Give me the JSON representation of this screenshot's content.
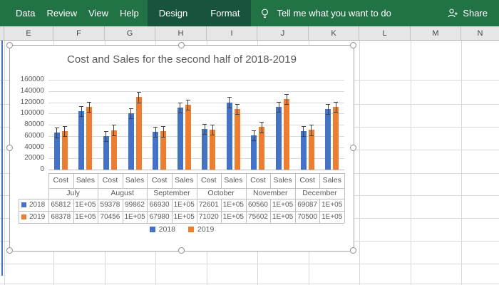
{
  "ribbon": {
    "tabs": [
      "Data",
      "Review",
      "View",
      "Help"
    ],
    "contextual_tabs": [
      "Design",
      "Format"
    ],
    "tell_me": "Tell me what you want to do",
    "share": "Share",
    "colors": {
      "bg": "#217346",
      "contextual_bg": "#17543b"
    }
  },
  "sheet": {
    "columns": [
      "E",
      "F",
      "G",
      "H",
      "I",
      "J",
      "K",
      "L",
      "M",
      "N"
    ]
  },
  "chart_data": {
    "type": "bar",
    "title": "Cost and Sales for the second half of 2018-2019",
    "months": [
      "July",
      "August",
      "September",
      "October",
      "November",
      "December"
    ],
    "metrics": [
      "Cost",
      "Sales"
    ],
    "y_ticks": [
      0,
      20000,
      40000,
      60000,
      80000,
      100000,
      120000,
      140000,
      160000
    ],
    "ylim": [
      0,
      160000
    ],
    "grid": true,
    "legend_position": "bottom",
    "error_bar_value": 9000,
    "series": [
      {
        "name": "2018",
        "color": "#4472c4",
        "values": [
          65812,
          104000,
          59378,
          99862,
          66930,
          111000,
          72601,
          120000,
          60560,
          112000,
          69087,
          108000
        ],
        "table_display": [
          "65812",
          "1E+05",
          "59378",
          "99862",
          "66930",
          "1E+05",
          "72601",
          "1E+05",
          "60560",
          "1E+05",
          "69087",
          "1E+05"
        ]
      },
      {
        "name": "2019",
        "color": "#ed7d31",
        "values": [
          68378,
          112000,
          70456,
          129000,
          67980,
          116000,
          71020,
          108000,
          75602,
          126000,
          70500,
          112000
        ],
        "table_display": [
          "68378",
          "1E+05",
          "70456",
          "1E+05",
          "67980",
          "1E+05",
          "71020",
          "1E+05",
          "75602",
          "1E+05",
          "70500",
          "1E+05"
        ]
      }
    ]
  }
}
